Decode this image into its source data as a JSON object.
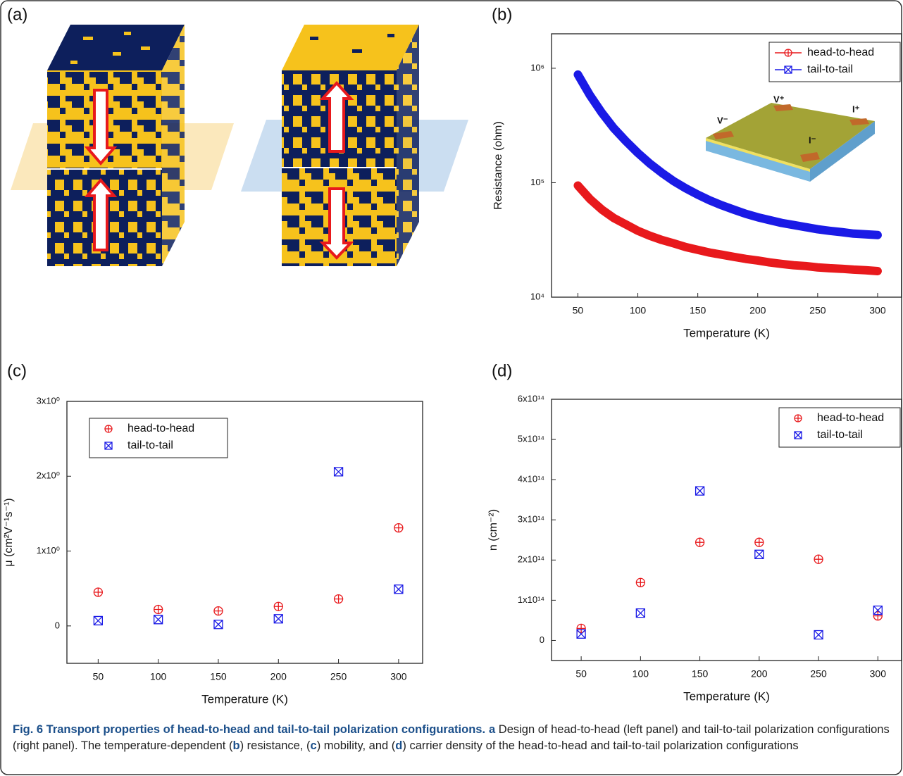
{
  "panel_labels": [
    "(a)",
    "(b)",
    "(c)",
    "(d)"
  ],
  "chart_data": [
    {
      "type": "line",
      "log_y": true,
      "legend": "upper right",
      "x": [
        50,
        60,
        70,
        80,
        90,
        100,
        110,
        120,
        130,
        140,
        150,
        160,
        170,
        180,
        190,
        200,
        210,
        220,
        230,
        240,
        250,
        260,
        270,
        280,
        290,
        300
      ],
      "series": [
        {
          "name": "head-to-head",
          "color": "#e8191c",
          "marker": "circle-plus",
          "values": [
            94400,
            72100,
            58200,
            49100,
            43200,
            38000,
            34400,
            31600,
            29500,
            27400,
            25900,
            24500,
            23500,
            22500,
            21600,
            20900,
            20100,
            19500,
            19000,
            18700,
            18200,
            17900,
            17700,
            17400,
            17200,
            16900
          ]
        },
        {
          "name": "tail-to-tail",
          "color": "#1a1ae6",
          "marker": "square-x",
          "values": [
            880000,
            582000,
            408000,
            299000,
            231000,
            182000,
            147000,
            122000,
            103000,
            89300,
            78600,
            70100,
            63500,
            58200,
            53500,
            49900,
            47100,
            44500,
            42700,
            40900,
            39200,
            38000,
            37000,
            35900,
            35400,
            34900
          ]
        }
      ],
      "xlabel": "Temperature (K)",
      "ylabel": "Resistance (ohm)",
      "xlim": [
        28,
        320
      ],
      "xticks": [
        50,
        100,
        150,
        200,
        250,
        300
      ],
      "ylim": [
        10000,
        2000000
      ],
      "yticks": [
        {
          "value": 10000,
          "label": "10⁴"
        },
        {
          "value": 100000,
          "label": "10⁵"
        },
        {
          "value": 1000000,
          "label": "10⁶"
        }
      ],
      "annotations": [
        "V⁻",
        "V⁺",
        "I⁺",
        "I⁻"
      ]
    },
    {
      "type": "scatter",
      "legend": "upper left",
      "x": [
        50,
        100,
        150,
        200,
        250,
        300
      ],
      "series": [
        {
          "name": "head-to-head",
          "color": "#e8191c",
          "marker": "circle-plus",
          "values": [
            0.45,
            0.22,
            0.2,
            0.26,
            0.36,
            1.31
          ]
        },
        {
          "name": "tail-to-tail",
          "color": "#1a1ae6",
          "marker": "square-x",
          "values": [
            0.07,
            0.085,
            0.02,
            0.095,
            2.06,
            0.49
          ]
        }
      ],
      "xlabel": "Temperature (K)",
      "ylabel": "μ (cm²V⁻¹s⁻¹)",
      "xlim": [
        24,
        320
      ],
      "xticks": [
        50,
        100,
        150,
        200,
        250,
        300
      ],
      "ylim": [
        -0.5,
        3
      ],
      "yticks": [
        0,
        {
          "value": 1,
          "label": "1x10⁰"
        },
        {
          "value": 2,
          "label": "2x10⁰"
        },
        {
          "value": 3,
          "label": "3x10⁰"
        }
      ]
    },
    {
      "type": "scatter",
      "legend": "upper right",
      "x": [
        50,
        100,
        150,
        200,
        250,
        300
      ],
      "series": [
        {
          "name": "head-to-head",
          "color": "#e8191c",
          "marker": "circle-plus",
          "values": [
            30000000000000.0,
            144000000000000.0,
            244000000000000.0,
            244000000000000.0,
            202000000000000.0,
            61000000000000.0
          ]
        },
        {
          "name": "tail-to-tail",
          "color": "#1a1ae6",
          "marker": "square-x",
          "values": [
            16000000000000.0,
            68000000000000.0,
            372000000000000.0,
            214000000000000.0,
            14000000000000.0,
            75000000000000.0
          ]
        }
      ],
      "xlabel": "Temperature (K)",
      "ylabel": "n (cm⁻²)",
      "xlim": [
        25,
        320
      ],
      "xticks": [
        50,
        100,
        150,
        200,
        250,
        300
      ],
      "ylim": [
        -50000000000000.0,
        600000000000000.0
      ],
      "yticks": [
        0,
        {
          "value": 100000000000000.0,
          "label": "1x10¹⁴"
        },
        {
          "value": 200000000000000.0,
          "label": "2x10¹⁴"
        },
        {
          "value": 300000000000000.0,
          "label": "3x10¹⁴"
        },
        {
          "value": 400000000000000.0,
          "label": "4x10¹⁴"
        },
        {
          "value": 500000000000000.0,
          "label": "5x10¹⁴"
        },
        {
          "value": 600000000000000.0,
          "label": "6x10¹⁴"
        }
      ]
    }
  ],
  "caption": {
    "title": "Fig. 6 Transport properties of head-to-head and tail-to-tail polarization configurations.",
    "parts": [
      {
        "text": "a",
        "bold": true
      },
      {
        "text": " Design of head-to-head (left panel) and tail-to-tail polarization configurations (right panel). The temperature-dependent (",
        "bold": false
      },
      {
        "text": "b",
        "bold": true
      },
      {
        "text": ") resistance, (",
        "bold": false
      },
      {
        "text": "c",
        "bold": true
      },
      {
        "text": ") mobility, and (",
        "bold": false
      },
      {
        "text": "d",
        "bold": true
      },
      {
        "text": ") carrier density of the head-to-head and tail-to-tail polarization configurations",
        "bold": false
      }
    ]
  }
}
